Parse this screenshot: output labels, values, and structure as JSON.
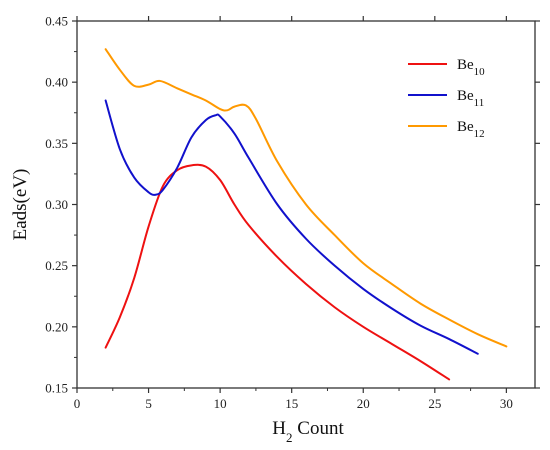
{
  "chart_data": {
    "type": "line",
    "title": "",
    "xlabel": {
      "main": "H",
      "sub": "2",
      "rest": " Count"
    },
    "ylabel": "Eads(eV)",
    "xlim": [
      0,
      32
    ],
    "ylim": [
      0.15,
      0.45
    ],
    "xticks": [
      0,
      5,
      10,
      15,
      20,
      25,
      30
    ],
    "yticks": [
      0.15,
      0.2,
      0.25,
      0.3,
      0.35,
      0.4,
      0.45
    ],
    "ytick_labels": [
      "0.15",
      "0.20",
      "0.25",
      "0.30",
      "0.35",
      "0.40",
      "0.45"
    ],
    "grid": false,
    "legend_position": "top-right",
    "series": [
      {
        "name": "Be",
        "name_sub": "10",
        "color": "#ee1111",
        "x": [
          2,
          3,
          4,
          5,
          6,
          7,
          8,
          9,
          10,
          11,
          12,
          14,
          16,
          18,
          20,
          22,
          24,
          26
        ],
        "y": [
          0.183,
          0.208,
          0.24,
          0.282,
          0.315,
          0.328,
          0.332,
          0.331,
          0.32,
          0.3,
          0.283,
          0.257,
          0.235,
          0.216,
          0.2,
          0.186,
          0.172,
          0.157
        ]
      },
      {
        "name": "Be",
        "name_sub": "11",
        "color": "#1111cc",
        "x": [
          2,
          3,
          4,
          5,
          5.5,
          6,
          7,
          8,
          9,
          9.7,
          10,
          11,
          12,
          14,
          16,
          18,
          20,
          22,
          24,
          26,
          28
        ],
        "y": [
          0.385,
          0.345,
          0.322,
          0.31,
          0.308,
          0.312,
          0.33,
          0.355,
          0.369,
          0.373,
          0.372,
          0.358,
          0.338,
          0.3,
          0.272,
          0.25,
          0.231,
          0.215,
          0.201,
          0.19,
          0.178
        ]
      },
      {
        "name": "Be",
        "name_sub": "12",
        "color": "#ff9900",
        "x": [
          2,
          3,
          4,
          5,
          5.8,
          7,
          8,
          9,
          10,
          10.5,
          11,
          11.8,
          12.5,
          14,
          16,
          18,
          20,
          22,
          24,
          26,
          28,
          30
        ],
        "y": [
          0.427,
          0.41,
          0.397,
          0.398,
          0.401,
          0.395,
          0.39,
          0.385,
          0.378,
          0.377,
          0.38,
          0.381,
          0.37,
          0.335,
          0.3,
          0.275,
          0.252,
          0.235,
          0.219,
          0.206,
          0.194,
          0.184
        ]
      }
    ]
  }
}
